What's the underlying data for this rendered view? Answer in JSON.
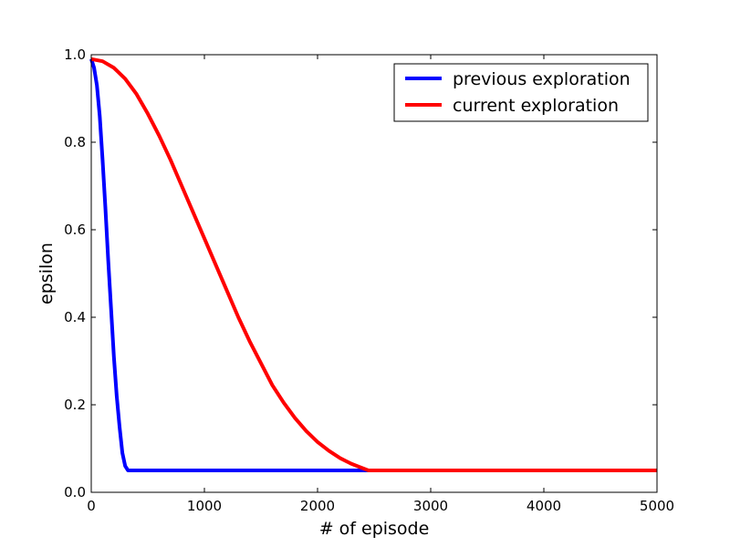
{
  "chart_data": {
    "type": "line",
    "xlabel": "# of episode",
    "ylabel": "epsilon",
    "xlim": [
      0,
      5000
    ],
    "ylim": [
      0.0,
      1.0
    ],
    "x_ticks": [
      0,
      1000,
      2000,
      3000,
      4000,
      5000
    ],
    "x_tick_labels": [
      "0",
      "1000",
      "2000",
      "3000",
      "4000",
      "5000"
    ],
    "y_ticks": [
      0.0,
      0.2,
      0.4,
      0.6,
      0.8,
      1.0
    ],
    "y_tick_labels": [
      "0.0",
      "0.2",
      "0.4",
      "0.6",
      "0.8",
      "1.0"
    ],
    "grid": false,
    "legend": {
      "placement": "top-right"
    },
    "series": [
      {
        "name": "previous exploration",
        "color": "#0000ff",
        "x": [
          0,
          25,
          50,
          75,
          100,
          125,
          150,
          175,
          200,
          225,
          250,
          275,
          300,
          325,
          350,
          375,
          400,
          500,
          1000,
          1500,
          2000,
          2500,
          3000,
          3500,
          4000,
          4500,
          5000
        ],
        "y": [
          0.99,
          0.97,
          0.93,
          0.86,
          0.76,
          0.65,
          0.53,
          0.42,
          0.31,
          0.22,
          0.15,
          0.09,
          0.06,
          0.05,
          0.05,
          0.05,
          0.05,
          0.05,
          0.05,
          0.05,
          0.05,
          0.05,
          0.05,
          0.05,
          0.05,
          0.05,
          0.05
        ]
      },
      {
        "name": "current exploration",
        "color": "#ff0000",
        "x": [
          0,
          100,
          200,
          300,
          400,
          500,
          600,
          700,
          800,
          900,
          1000,
          1100,
          1200,
          1300,
          1400,
          1500,
          1600,
          1700,
          1800,
          1900,
          2000,
          2100,
          2200,
          2300,
          2400,
          2450,
          3000,
          3500,
          4000,
          4500,
          5000
        ],
        "y": [
          0.99,
          0.985,
          0.97,
          0.945,
          0.91,
          0.865,
          0.815,
          0.76,
          0.7,
          0.64,
          0.58,
          0.52,
          0.46,
          0.4,
          0.345,
          0.295,
          0.245,
          0.205,
          0.17,
          0.14,
          0.115,
          0.095,
          0.078,
          0.065,
          0.055,
          0.05,
          0.05,
          0.05,
          0.05,
          0.05,
          0.05
        ]
      }
    ]
  }
}
